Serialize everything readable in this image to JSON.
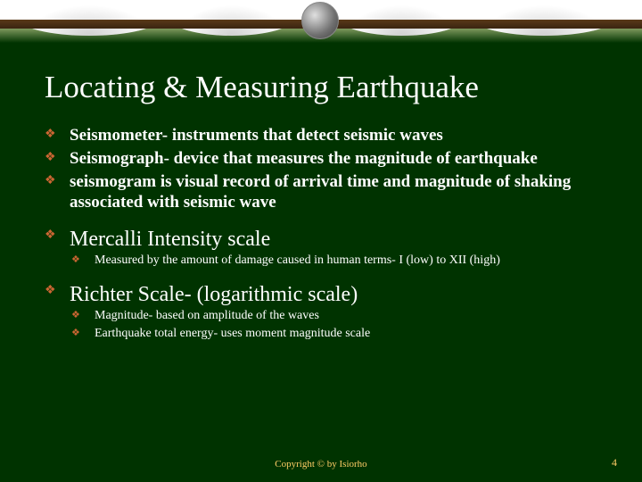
{
  "title": "Locating & Measuring Earthquake",
  "bullets": {
    "b1": "Seismometer- instruments that detect seismic waves",
    "b2": "Seismograph- device that measures the magnitude of earthquake",
    "b3": "seismogram is visual record of arrival time and magnitude of shaking associated with seismic wave"
  },
  "section1": {
    "title": "Mercalli Intensity scale",
    "sub1": "Measured by the amount of damage caused in human terms- I (low) to XII (high)"
  },
  "section2": {
    "title": "Richter Scale- (logarithmic scale)",
    "sub1": "Magnitude- based on amplitude of the waves",
    "sub2": "Earthquake total energy- uses moment magnitude scale"
  },
  "footer": {
    "copyright": "Copyright © by Isiorho",
    "page": "4"
  }
}
